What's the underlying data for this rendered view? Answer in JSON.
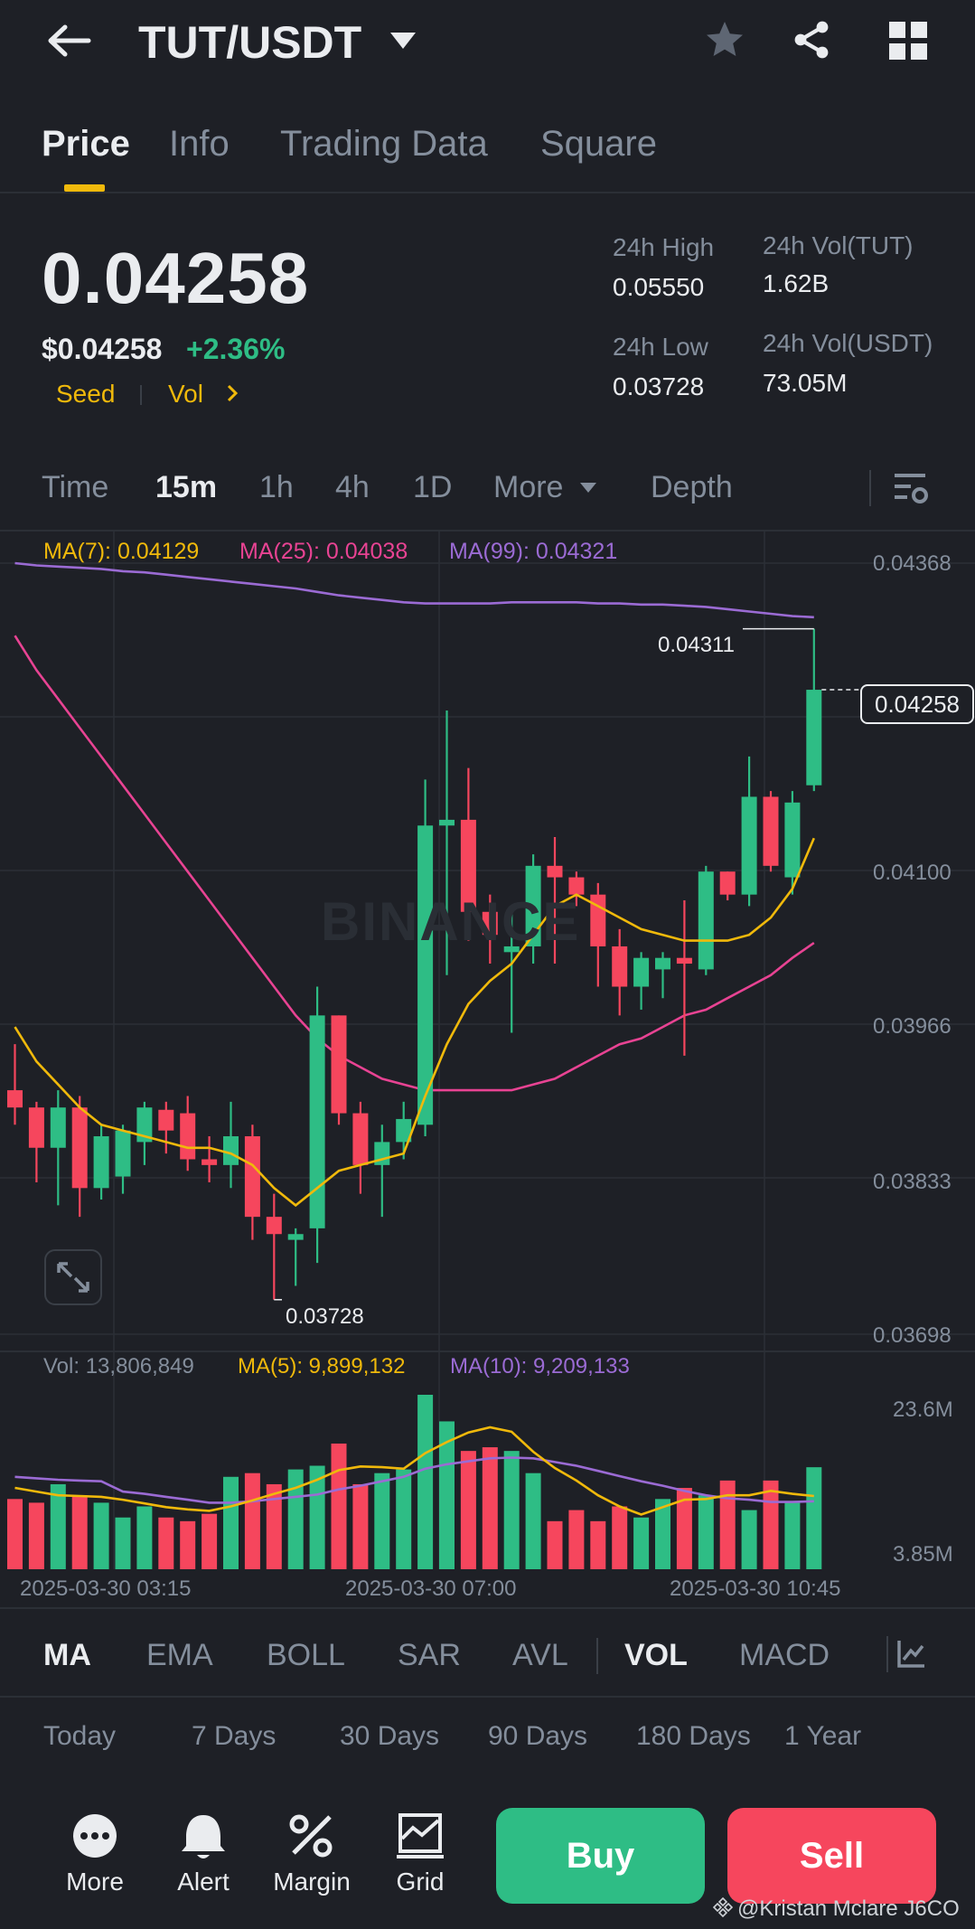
{
  "header": {
    "pair": "TUT/USDT",
    "tabs": [
      {
        "label": "Price"
      },
      {
        "label": "Info"
      },
      {
        "label": "Trading Data"
      },
      {
        "label": "Square"
      }
    ]
  },
  "ticker": {
    "last_price": "0.04258",
    "usd_price": "$0.04258",
    "change_pct": "+2.36%",
    "tags": [
      "Seed",
      "Vol"
    ],
    "high_label": "24h High",
    "high_value": "0.05550",
    "low_label": "24h Low",
    "low_value": "0.03728",
    "vol_base_label": "24h Vol(TUT)",
    "vol_base_value": "1.62B",
    "vol_quote_label": "24h Vol(USDT)",
    "vol_quote_value": "73.05M"
  },
  "timeframes": [
    {
      "label": "Time"
    },
    {
      "label": "15m"
    },
    {
      "label": "1h"
    },
    {
      "label": "4h"
    },
    {
      "label": "1D"
    },
    {
      "label": "More"
    },
    {
      "label": "Depth"
    }
  ],
  "chart_legend": {
    "ma7": "MA(7): 0.04129",
    "ma25": "MA(25): 0.04038",
    "ma99": "MA(99): 0.04321",
    "vol": "Vol: 13,806,849",
    "vma5": "MA(5): 9,899,132",
    "vma10": "MA(10): 9,209,133"
  },
  "price_axis": [
    "0.04368",
    "0.04100",
    "0.03966",
    "0.03833",
    "0.03698"
  ],
  "current_price_tag": "0.04258",
  "high_marker": "0.04311",
  "low_marker": "0.03728",
  "vol_axis": [
    "23.6M",
    "3.85M"
  ],
  "time_axis": [
    "2025-03-30 03:15",
    "2025-03-30 07:00",
    "2025-03-30 10:45"
  ],
  "watermark": "BINANCE",
  "colors": {
    "up": "#2ebd85",
    "down": "#f6465d",
    "ma7": "#f0b90b",
    "ma25": "#e84393",
    "ma99": "#9b6bd4",
    "accent": "#f0b90b"
  },
  "chart_data": {
    "type": "candlestick",
    "interval": "15m",
    "ylim": [
      0.03698,
      0.04368
    ],
    "candles": [
      {
        "o": 0.0391,
        "h": 0.0395,
        "l": 0.0388,
        "c": 0.03895
      },
      {
        "o": 0.03895,
        "h": 0.039,
        "l": 0.0383,
        "c": 0.0386
      },
      {
        "o": 0.0386,
        "h": 0.0391,
        "l": 0.0381,
        "c": 0.03895
      },
      {
        "o": 0.03895,
        "h": 0.03905,
        "l": 0.038,
        "c": 0.03825
      },
      {
        "o": 0.03825,
        "h": 0.0388,
        "l": 0.03815,
        "c": 0.0387
      },
      {
        "o": 0.03835,
        "h": 0.0388,
        "l": 0.0382,
        "c": 0.03875
      },
      {
        "o": 0.03865,
        "h": 0.039,
        "l": 0.03845,
        "c": 0.03895
      },
      {
        "o": 0.03893,
        "h": 0.039,
        "l": 0.03855,
        "c": 0.03875
      },
      {
        "o": 0.0389,
        "h": 0.03905,
        "l": 0.0384,
        "c": 0.0385
      },
      {
        "o": 0.0385,
        "h": 0.0387,
        "l": 0.0383,
        "c": 0.03845
      },
      {
        "o": 0.03845,
        "h": 0.039,
        "l": 0.03825,
        "c": 0.0387
      },
      {
        "o": 0.0387,
        "h": 0.0388,
        "l": 0.0378,
        "c": 0.038
      },
      {
        "o": 0.038,
        "h": 0.0382,
        "l": 0.03728,
        "c": 0.03785
      },
      {
        "o": 0.0378,
        "h": 0.0379,
        "l": 0.0374,
        "c": 0.03785
      },
      {
        "o": 0.0379,
        "h": 0.04,
        "l": 0.0376,
        "c": 0.03975
      },
      {
        "o": 0.03975,
        "h": 0.03975,
        "l": 0.0388,
        "c": 0.0389
      },
      {
        "o": 0.0389,
        "h": 0.039,
        "l": 0.0382,
        "c": 0.03845
      },
      {
        "o": 0.03845,
        "h": 0.0388,
        "l": 0.038,
        "c": 0.03865
      },
      {
        "o": 0.03865,
        "h": 0.039,
        "l": 0.0385,
        "c": 0.03885
      },
      {
        "o": 0.0388,
        "h": 0.0418,
        "l": 0.0387,
        "c": 0.0414
      },
      {
        "o": 0.0414,
        "h": 0.0424,
        "l": 0.0401,
        "c": 0.04145
      },
      {
        "o": 0.04145,
        "h": 0.0419,
        "l": 0.0404,
        "c": 0.04065
      },
      {
        "o": 0.04065,
        "h": 0.0408,
        "l": 0.0402,
        "c": 0.04045
      },
      {
        "o": 0.0403,
        "h": 0.0407,
        "l": 0.0396,
        "c": 0.04035
      },
      {
        "o": 0.04035,
        "h": 0.04115,
        "l": 0.0402,
        "c": 0.04105
      },
      {
        "o": 0.04105,
        "h": 0.0413,
        "l": 0.0402,
        "c": 0.04095
      },
      {
        "o": 0.04095,
        "h": 0.041,
        "l": 0.0407,
        "c": 0.0408
      },
      {
        "o": 0.0408,
        "h": 0.0409,
        "l": 0.04,
        "c": 0.04035
      },
      {
        "o": 0.04035,
        "h": 0.0405,
        "l": 0.03975,
        "c": 0.04
      },
      {
        "o": 0.04,
        "h": 0.0403,
        "l": 0.0398,
        "c": 0.04025
      },
      {
        "o": 0.04015,
        "h": 0.0403,
        "l": 0.0399,
        "c": 0.04025
      },
      {
        "o": 0.04025,
        "h": 0.04075,
        "l": 0.0394,
        "c": 0.0402
      },
      {
        "o": 0.04015,
        "h": 0.04105,
        "l": 0.0401,
        "c": 0.041
      },
      {
        "o": 0.041,
        "h": 0.041,
        "l": 0.04075,
        "c": 0.0408
      },
      {
        "o": 0.0408,
        "h": 0.042,
        "l": 0.0407,
        "c": 0.04165
      },
      {
        "o": 0.04165,
        "h": 0.0417,
        "l": 0.041,
        "c": 0.04105
      },
      {
        "o": 0.04095,
        "h": 0.0417,
        "l": 0.0408,
        "c": 0.0416
      },
      {
        "o": 0.04175,
        "h": 0.04311,
        "l": 0.0417,
        "c": 0.04258
      }
    ],
    "ma7": [
      0.03965,
      0.03935,
      0.03915,
      0.03895,
      0.0388,
      0.03875,
      0.0387,
      0.03865,
      0.0386,
      0.0386,
      0.03855,
      0.03845,
      0.03825,
      0.0381,
      0.03825,
      0.0384,
      0.03845,
      0.0385,
      0.03855,
      0.03905,
      0.0395,
      0.03985,
      0.04005,
      0.0402,
      0.04045,
      0.0407,
      0.0408,
      0.0407,
      0.0406,
      0.0405,
      0.04045,
      0.0404,
      0.0404,
      0.0404,
      0.04045,
      0.0406,
      0.04085,
      0.04129
    ],
    "ma25": [
      0.04305,
      0.04275,
      0.0425,
      0.04225,
      0.042,
      0.04175,
      0.0415,
      0.04125,
      0.041,
      0.04075,
      0.0405,
      0.04025,
      0.04,
      0.03975,
      0.03955,
      0.0394,
      0.0393,
      0.0392,
      0.03915,
      0.0391,
      0.0391,
      0.0391,
      0.0391,
      0.0391,
      0.03915,
      0.0392,
      0.0393,
      0.0394,
      0.0395,
      0.03955,
      0.03965,
      0.03975,
      0.0398,
      0.0399,
      0.04,
      0.0401,
      0.04025,
      0.04038
    ],
    "ma99": [
      0.04368,
      0.04366,
      0.04365,
      0.04364,
      0.04363,
      0.04361,
      0.0436,
      0.04358,
      0.04356,
      0.04354,
      0.04352,
      0.0435,
      0.04348,
      0.04346,
      0.04343,
      0.0434,
      0.04338,
      0.04336,
      0.04334,
      0.04333,
      0.04333,
      0.04333,
      0.04333,
      0.04334,
      0.04334,
      0.04334,
      0.04334,
      0.04333,
      0.04333,
      0.04332,
      0.04332,
      0.04331,
      0.0433,
      0.04328,
      0.04326,
      0.04324,
      0.04322,
      0.04321
    ],
    "volume": [
      9.5,
      9.0,
      11.5,
      10.0,
      9.0,
      7.0,
      8.5,
      7.0,
      6.5,
      7.5,
      12.5,
      13.0,
      11.5,
      13.5,
      14.0,
      17.0,
      11.5,
      13.0,
      13.5,
      23.6,
      20.0,
      16.0,
      16.5,
      16.0,
      13.0,
      6.5,
      8.0,
      6.5,
      8.5,
      7.0,
      9.5,
      11.0,
      10.0,
      12.0,
      8.0,
      12.0,
      9.0,
      13.8
    ],
    "vol_ma5": [
      11.0,
      10.5,
      10.0,
      9.9,
      9.8,
      9.4,
      8.9,
      8.4,
      8.1,
      7.9,
      8.5,
      9.3,
      10.2,
      11.0,
      12.1,
      13.4,
      13.9,
      13.8,
      13.6,
      15.7,
      17.2,
      18.5,
      19.2,
      18.6,
      15.9,
      13.7,
      12.0,
      10.0,
      8.5,
      7.4,
      8.4,
      9.4,
      9.5,
      10.0,
      10.0,
      10.6,
      10.2,
      9.9
    ],
    "vol_ma10": [
      12.5,
      12.3,
      12.1,
      12.0,
      11.9,
      10.5,
      10.2,
      9.8,
      9.4,
      9.0,
      9.0,
      9.2,
      9.5,
      9.8,
      10.1,
      10.8,
      11.3,
      11.9,
      12.5,
      13.6,
      14.2,
      14.6,
      15.0,
      15.1,
      15.0,
      14.5,
      14.0,
      13.3,
      12.6,
      11.9,
      11.3,
      10.6,
      10.0,
      9.6,
      9.4,
      9.1,
      9.1,
      9.2
    ]
  },
  "indicators": [
    {
      "label": "MA"
    },
    {
      "label": "EMA"
    },
    {
      "label": "BOLL"
    },
    {
      "label": "SAR"
    },
    {
      "label": "AVL"
    },
    {
      "label": "VOL"
    },
    {
      "label": "MACD"
    }
  ],
  "periods": [
    {
      "label": "Today"
    },
    {
      "label": "7 Days"
    },
    {
      "label": "30 Days"
    },
    {
      "label": "90 Days"
    },
    {
      "label": "180 Days"
    },
    {
      "label": "1 Year"
    }
  ],
  "bottom_bar": {
    "more": "More",
    "alert": "Alert",
    "margin": "Margin",
    "grid": "Grid",
    "buy": "Buy",
    "sell": "Sell"
  },
  "footer_watermark": "@Kristan Mclare J6CO"
}
